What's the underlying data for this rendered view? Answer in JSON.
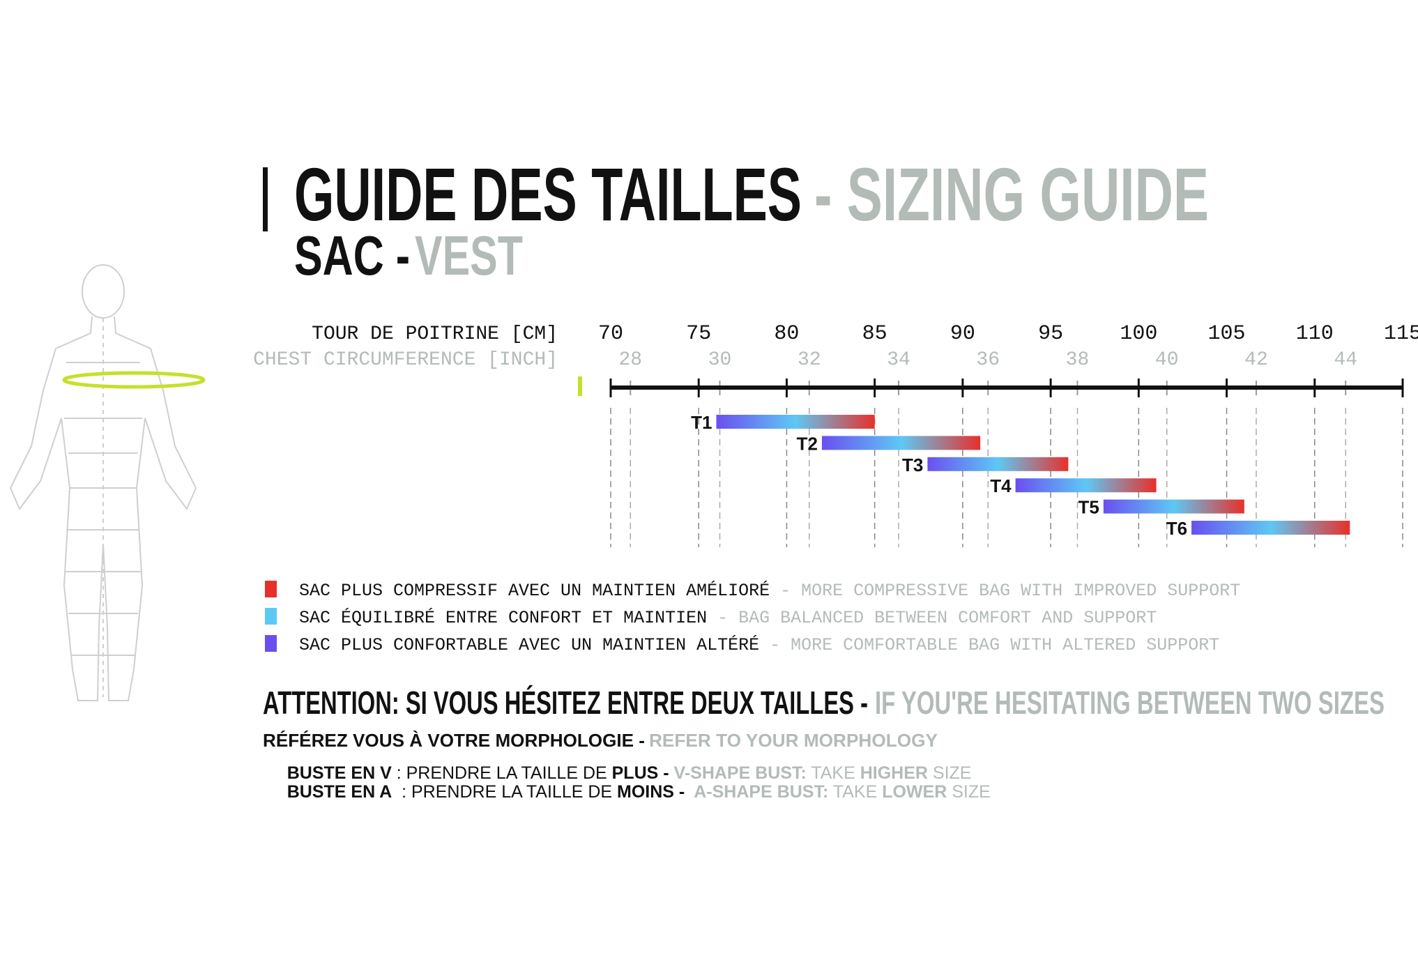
{
  "header": {
    "title": "GUIDE DES TAILLES",
    "title_en": "- SIZING GUIDE",
    "subtitle": "SAC -",
    "subtitle_en": "VEST"
  },
  "chart_data": {
    "type": "range",
    "xlabel": "TOUR DE POITRINE [CM]",
    "x2label": "CHEST CIRCUMFERENCE [INCH]",
    "xlim": [
      70,
      115
    ],
    "xticks": [
      70,
      75,
      80,
      85,
      90,
      95,
      100,
      105,
      110,
      115
    ],
    "x2ticks": [
      {
        "value": 71.12,
        "label": "28"
      },
      {
        "value": 76.2,
        "label": "30"
      },
      {
        "value": 81.28,
        "label": "32"
      },
      {
        "value": 86.36,
        "label": "34"
      },
      {
        "value": 91.44,
        "label": "36"
      },
      {
        "value": 96.52,
        "label": "38"
      },
      {
        "value": 101.6,
        "label": "40"
      },
      {
        "value": 106.68,
        "label": "42"
      },
      {
        "value": 111.76,
        "label": "44"
      }
    ],
    "categories": [
      "T1",
      "T2",
      "T3",
      "T4",
      "T5",
      "T6"
    ],
    "low": [
      76,
      82,
      88,
      93,
      98,
      103
    ],
    "high": [
      85,
      91,
      96,
      101,
      106,
      112
    ],
    "grid": true,
    "legend": [
      {
        "color": "#e8302a",
        "text": "SAC PLUS COMPRESSIF AVEC UN MAINTIEN AMÉLIORÉ",
        "text_en": "- MORE COMPRESSIVE BAG WITH IMPROVED SUPPORT"
      },
      {
        "color": "#5ec8f4",
        "text": "SAC ÉQUILIBRÉ ENTRE CONFORT ET MAINTIEN",
        "text_en": "- BAG BALANCED BETWEEN COMFORT AND SUPPORT"
      },
      {
        "color": "#6a4ff0",
        "text": "SAC PLUS CONFORTABLE AVEC UN MAINTIEN ALTÉRÉ",
        "text_en": "- MORE COMFORTABLE BAG WITH ALTERED SUPPORT"
      }
    ]
  },
  "notes": {
    "attention": "ATTENTION: SI VOUS HÉSITEZ ENTRE DEUX TAILLES -",
    "attention_en": "IF YOU'RE HESITATING BETWEEN TWO SIZES",
    "refer": "RÉFÉREZ VOUS À VOTRE MORPHOLOGIE -",
    "refer_en": "REFER TO YOUR MORPHOLOGY",
    "v_shape": [
      "BUSTE EN V",
      " : PRENDRE LA TAILLE DE ",
      "PLUS",
      " - ",
      "V-SHAPE BUST:",
      " TAKE ",
      "HIGHER",
      " SIZE"
    ],
    "a_shape": [
      "BUSTE EN A",
      "  : PRENDRE LA TAILLE DE ",
      "MOINS",
      " -  ",
      "A-SHAPE BUST:",
      " TAKE ",
      "LOWER",
      " SIZE"
    ]
  }
}
